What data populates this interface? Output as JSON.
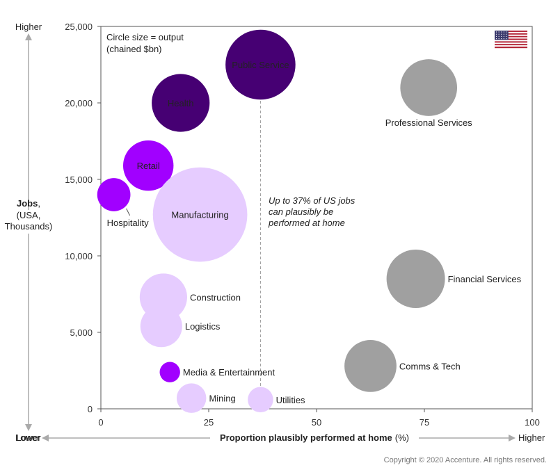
{
  "chart_data": {
    "type": "bubble",
    "title": "",
    "size_legend": [
      "Circle size = output",
      "(chained $bn)"
    ],
    "xlabel": "Proportion plausibly performed at home",
    "xlabel_unit": "(%)",
    "x_low_label": "Lower",
    "x_high_label": "Higher",
    "ylabel_bold": "Jobs",
    "ylabel_rest": ",",
    "ylabel_lines": [
      "(USA,",
      "Thousands)"
    ],
    "y_high_label": "Higher",
    "y_low_label": "Lower",
    "xlim": [
      0,
      100
    ],
    "ylim": [
      0,
      25000
    ],
    "x_ticks": [
      0,
      25,
      50,
      75,
      100
    ],
    "x_tick_labels": [
      "0",
      "25",
      "50",
      "75",
      "100"
    ],
    "y_ticks": [
      0,
      5000,
      10000,
      15000,
      20000,
      25000
    ],
    "y_tick_labels": [
      "0",
      "5,000",
      "10,000",
      "15,000",
      "20,000",
      "25,000"
    ],
    "reference_line": {
      "x": 37,
      "annotation": [
        "Up to 37% of US jobs",
        "can plausibly be",
        "performed at home"
      ]
    },
    "series": [
      {
        "name": "Public Service",
        "x": 37,
        "y": 22500,
        "size": 2350,
        "color": "#460073",
        "label_pos": "inside"
      },
      {
        "name": "Health",
        "x": 18.5,
        "y": 20000,
        "size": 1610,
        "color": "#460073",
        "label_pos": "inside"
      },
      {
        "name": "Retail",
        "x": 11,
        "y": 15900,
        "size": 1220,
        "color": "#a100ff",
        "label_pos": "inside"
      },
      {
        "name": "Hospitality",
        "x": 3,
        "y": 14000,
        "size": 530,
        "color": "#a100ff",
        "label_pos": "below-right"
      },
      {
        "name": "Manufacturing",
        "x": 23,
        "y": 12700,
        "size": 4280,
        "color": "#e6ccff",
        "label_pos": "inside"
      },
      {
        "name": "Construction",
        "x": 14.5,
        "y": 7300,
        "size": 1080,
        "color": "#e6ccff",
        "label_pos": "right"
      },
      {
        "name": "Logistics",
        "x": 14,
        "y": 5400,
        "size": 840,
        "color": "#e6ccff",
        "label_pos": "right"
      },
      {
        "name": "Media & Entertainment",
        "x": 16,
        "y": 2400,
        "size": 200,
        "color": "#a100ff",
        "label_pos": "right"
      },
      {
        "name": "Mining",
        "x": 21,
        "y": 700,
        "size": 420,
        "color": "#e6ccff",
        "label_pos": "right"
      },
      {
        "name": "Utilities",
        "x": 37,
        "y": 600,
        "size": 310,
        "color": "#e6ccff",
        "label_pos": "right"
      },
      {
        "name": "Professional Services",
        "x": 76,
        "y": 21000,
        "size": 1550,
        "color": "#a0a0a0",
        "label_pos": "below"
      },
      {
        "name": "Financial Services",
        "x": 73,
        "y": 8500,
        "size": 1640,
        "color": "#a0a0a0",
        "label_pos": "right"
      },
      {
        "name": "Comms & Tech",
        "x": 62.5,
        "y": 2800,
        "size": 1300,
        "color": "#a0a0a0",
        "label_pos": "right"
      }
    ]
  },
  "flag": {
    "name": "us-flag-icon"
  },
  "footer": {
    "copyright": "Copyright © 2020 Accenture. All rights reserved."
  }
}
